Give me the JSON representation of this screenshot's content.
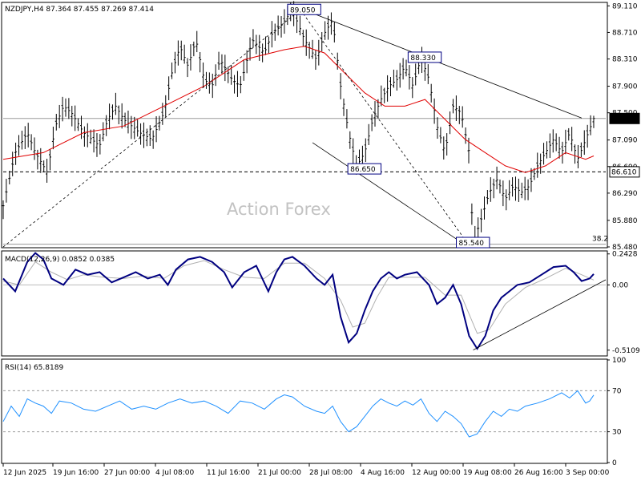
{
  "header": {
    "main": "NZDJPY,H4  87.364 87.455 87.269 87.414",
    "macd": "MACD(12,26,9) 0.0852 0.0385",
    "rsi": "RSI(14) 65.8189"
  },
  "watermark": "Action Forex",
  "x_axis": {
    "labels": [
      "12 Jun 2025",
      "19 Jun 16:00",
      "27 Jun 00:00",
      "4 Jul 08:00",
      "11 Jul 16:00",
      "21 Jul 00:00",
      "28 Jul 08:00",
      "4 Aug 16:00",
      "12 Aug 00:00",
      "19 Aug 08:00",
      "26 Aug 16:00",
      "3 Sep 00:00"
    ]
  },
  "colors": {
    "price_bars": "#000000",
    "moving_average": "#e00000",
    "macd_line": "#000080",
    "macd_signal": "#b0b0b0",
    "rsi_line": "#1e90ff",
    "trendline": "#000000",
    "label_border": "#000080",
    "current_price_box": "#000000"
  },
  "chart_data": [
    {
      "type": "ohlc",
      "symbol": "NZDJPY",
      "timeframe": "H4",
      "last_bar": {
        "open": 87.364,
        "high": 87.455,
        "low": 87.269,
        "close": 87.414
      },
      "y_ticks": [
        "89.110",
        "88.710",
        "88.310",
        "87.900",
        "87.500",
        "87.090",
        "86.690",
        "86.290",
        "85.880",
        "85.480"
      ],
      "ylim": [
        85.48,
        89.15
      ],
      "x_range": [
        0,
        150
      ],
      "price_path": [
        [
          0,
          86.1
        ],
        [
          3,
          86.9
        ],
        [
          6,
          87.2
        ],
        [
          8,
          86.9
        ],
        [
          11,
          86.6
        ],
        [
          13,
          87.3
        ],
        [
          15,
          87.6
        ],
        [
          17,
          87.5
        ],
        [
          20,
          87.2
        ],
        [
          24,
          87.0
        ],
        [
          26,
          87.4
        ],
        [
          28,
          87.6
        ],
        [
          30,
          87.4
        ],
        [
          34,
          87.2
        ],
        [
          37,
          87.1
        ],
        [
          40,
          87.5
        ],
        [
          42,
          88.1
        ],
        [
          44,
          88.5
        ],
        [
          46,
          88.2
        ],
        [
          48,
          88.6
        ],
        [
          50,
          88.0
        ],
        [
          52,
          87.9
        ],
        [
          54,
          88.3
        ],
        [
          57,
          88.0
        ],
        [
          59,
          87.9
        ],
        [
          62,
          88.6
        ],
        [
          65,
          88.4
        ],
        [
          67,
          88.7
        ],
        [
          69,
          88.8
        ],
        [
          72,
          89.05
        ],
        [
          75,
          88.6
        ],
        [
          78,
          88.3
        ],
        [
          80,
          88.7
        ],
        [
          82,
          88.9
        ],
        [
          84,
          87.9
        ],
        [
          86,
          87.2
        ],
        [
          88,
          86.7
        ],
        [
          90,
          86.9
        ],
        [
          92,
          87.4
        ],
        [
          94,
          87.7
        ],
        [
          96,
          87.9
        ],
        [
          98,
          88.0
        ],
        [
          100,
          88.2
        ],
        [
          102,
          87.9
        ],
        [
          104,
          88.33
        ],
        [
          106,
          88.0
        ],
        [
          108,
          87.3
        ],
        [
          110,
          86.9
        ],
        [
          112,
          87.6
        ],
        [
          114,
          87.5
        ],
        [
          116,
          86.9
        ],
        [
          117,
          85.54
        ],
        [
          119,
          85.9
        ],
        [
          121,
          86.3
        ],
        [
          123,
          86.5
        ],
        [
          125,
          86.2
        ],
        [
          127,
          86.4
        ],
        [
          129,
          86.3
        ],
        [
          131,
          86.4
        ],
        [
          133,
          86.7
        ],
        [
          135,
          86.9
        ],
        [
          137,
          87.1
        ],
        [
          139,
          86.9
        ],
        [
          141,
          87.2
        ],
        [
          143,
          86.8
        ],
        [
          145,
          87.1
        ],
        [
          147,
          87.414
        ]
      ],
      "moving_average": [
        [
          0,
          86.8
        ],
        [
          10,
          86.9
        ],
        [
          20,
          87.2
        ],
        [
          30,
          87.3
        ],
        [
          40,
          87.6
        ],
        [
          50,
          87.9
        ],
        [
          60,
          88.3
        ],
        [
          70,
          88.45
        ],
        [
          75,
          88.5
        ],
        [
          80,
          88.4
        ],
        [
          85,
          88.1
        ],
        [
          90,
          87.8
        ],
        [
          95,
          87.6
        ],
        [
          100,
          87.6
        ],
        [
          105,
          87.7
        ],
        [
          110,
          87.4
        ],
        [
          115,
          87.1
        ],
        [
          120,
          86.9
        ],
        [
          125,
          86.7
        ],
        [
          130,
          86.6
        ],
        [
          135,
          86.7
        ],
        [
          140,
          86.9
        ],
        [
          145,
          86.8
        ],
        [
          147,
          86.85
        ]
      ],
      "annotations": [
        {
          "text": "89.050",
          "x": 71,
          "y": 89.05
        },
        {
          "text": "88.330",
          "x": 101,
          "y": 88.33
        },
        {
          "text": "86.650",
          "x": 86,
          "y": 86.65
        },
        {
          "text": "85.540",
          "x": 113,
          "y": 85.54
        }
      ],
      "horizontal_levels": [
        {
          "value": 87.414,
          "label": "87.414",
          "style": "solid"
        },
        {
          "value": 86.61,
          "label": "86.610",
          "style": "dashed"
        },
        {
          "value": 85.52,
          "label": "38.2",
          "style": "solid"
        }
      ],
      "trendlines": [
        {
          "x1": 74,
          "y1": 89.07,
          "x2": 144,
          "y2": 87.42,
          "style": "solid"
        },
        {
          "x1": 77,
          "y1": 87.05,
          "x2": 116,
          "y2": 85.47,
          "style": "solid"
        },
        {
          "x1": 0,
          "y1": 85.48,
          "x2": 74,
          "y2": 89.05,
          "style": "dashed"
        },
        {
          "x1": 74,
          "y1": 89.05,
          "x2": 116,
          "y2": 85.5,
          "style": "dashed"
        }
      ]
    },
    {
      "type": "line",
      "name": "MACD(12,26,9)",
      "values_text": "0.0852 0.0385",
      "y_ticks": [
        "0.2428",
        "0.00",
        "-0.5109"
      ],
      "ylim": [
        -0.55,
        0.26
      ],
      "series": [
        {
          "name": "MACD",
          "points": [
            [
              0,
              0.05
            ],
            [
              3,
              -0.05
            ],
            [
              6,
              0.18
            ],
            [
              8,
              0.25
            ],
            [
              10,
              0.2
            ],
            [
              12,
              0.05
            ],
            [
              15,
              0.0
            ],
            [
              18,
              0.12
            ],
            [
              21,
              0.08
            ],
            [
              24,
              0.1
            ],
            [
              27,
              0.02
            ],
            [
              30,
              0.06
            ],
            [
              33,
              0.1
            ],
            [
              36,
              0.05
            ],
            [
              39,
              0.08
            ],
            [
              41,
              0.0
            ],
            [
              43,
              0.12
            ],
            [
              46,
              0.2
            ],
            [
              49,
              0.22
            ],
            [
              52,
              0.18
            ],
            [
              55,
              0.1
            ],
            [
              57,
              -0.02
            ],
            [
              60,
              0.1
            ],
            [
              63,
              0.15
            ],
            [
              66,
              -0.05
            ],
            [
              68,
              0.1
            ],
            [
              70,
              0.2
            ],
            [
              72,
              0.22
            ],
            [
              75,
              0.15
            ],
            [
              78,
              0.05
            ],
            [
              80,
              0.0
            ],
            [
              82,
              0.08
            ],
            [
              84,
              -0.25
            ],
            [
              86,
              -0.45
            ],
            [
              88,
              -0.38
            ],
            [
              90,
              -0.2
            ],
            [
              92,
              -0.05
            ],
            [
              94,
              0.05
            ],
            [
              96,
              0.1
            ],
            [
              98,
              0.05
            ],
            [
              100,
              0.08
            ],
            [
              103,
              0.1
            ],
            [
              106,
              0.0
            ],
            [
              108,
              -0.15
            ],
            [
              110,
              -0.1
            ],
            [
              112,
              0.0
            ],
            [
              114,
              -0.15
            ],
            [
              116,
              -0.4
            ],
            [
              118,
              -0.5
            ],
            [
              120,
              -0.4
            ],
            [
              122,
              -0.2
            ],
            [
              124,
              -0.1
            ],
            [
              126,
              -0.05
            ],
            [
              128,
              0.0
            ],
            [
              131,
              0.02
            ],
            [
              134,
              0.08
            ],
            [
              137,
              0.14
            ],
            [
              140,
              0.15
            ],
            [
              142,
              0.1
            ],
            [
              144,
              0.03
            ],
            [
              146,
              0.05
            ],
            [
              147,
              0.0852
            ]
          ]
        },
        {
          "name": "Signal",
          "points": [
            [
              0,
              0.03
            ],
            [
              4,
              0.0
            ],
            [
              8,
              0.18
            ],
            [
              12,
              0.1
            ],
            [
              16,
              0.04
            ],
            [
              20,
              0.08
            ],
            [
              25,
              0.06
            ],
            [
              30,
              0.05
            ],
            [
              35,
              0.07
            ],
            [
              40,
              0.05
            ],
            [
              45,
              0.15
            ],
            [
              50,
              0.19
            ],
            [
              55,
              0.12
            ],
            [
              60,
              0.06
            ],
            [
              65,
              0.05
            ],
            [
              70,
              0.17
            ],
            [
              75,
              0.17
            ],
            [
              80,
              0.05
            ],
            [
              84,
              -0.12
            ],
            [
              87,
              -0.33
            ],
            [
              90,
              -0.3
            ],
            [
              93,
              -0.1
            ],
            [
              96,
              0.06
            ],
            [
              100,
              0.06
            ],
            [
              105,
              0.06
            ],
            [
              110,
              -0.08
            ],
            [
              114,
              -0.08
            ],
            [
              118,
              -0.38
            ],
            [
              121,
              -0.35
            ],
            [
              125,
              -0.15
            ],
            [
              130,
              -0.02
            ],
            [
              135,
              0.05
            ],
            [
              140,
              0.13
            ],
            [
              144,
              0.08
            ],
            [
              147,
              0.0385
            ]
          ]
        }
      ],
      "trendline": {
        "x1": 117,
        "y1": -0.51,
        "x2": 150,
        "y2": 0.04
      }
    },
    {
      "type": "line",
      "name": "RSI(14)",
      "values_text": "65.8189",
      "y_ticks": [
        "100",
        "70",
        "30",
        "0"
      ],
      "ylim": [
        0,
        100
      ],
      "levels": [
        70,
        30
      ],
      "series": [
        {
          "name": "RSI",
          "points": [
            [
              0,
              40
            ],
            [
              2,
              55
            ],
            [
              4,
              45
            ],
            [
              6,
              62
            ],
            [
              8,
              58
            ],
            [
              10,
              55
            ],
            [
              12,
              48
            ],
            [
              14,
              60
            ],
            [
              17,
              58
            ],
            [
              20,
              52
            ],
            [
              23,
              50
            ],
            [
              26,
              55
            ],
            [
              29,
              60
            ],
            [
              32,
              52
            ],
            [
              35,
              55
            ],
            [
              38,
              52
            ],
            [
              41,
              58
            ],
            [
              44,
              62
            ],
            [
              47,
              58
            ],
            [
              50,
              60
            ],
            [
              53,
              55
            ],
            [
              56,
              48
            ],
            [
              59,
              60
            ],
            [
              62,
              58
            ],
            [
              65,
              52
            ],
            [
              68,
              62
            ],
            [
              70,
              66
            ],
            [
              72,
              64
            ],
            [
              75,
              55
            ],
            [
              78,
              50
            ],
            [
              80,
              48
            ],
            [
              82,
              55
            ],
            [
              84,
              40
            ],
            [
              86,
              30
            ],
            [
              88,
              35
            ],
            [
              90,
              45
            ],
            [
              92,
              55
            ],
            [
              94,
              62
            ],
            [
              96,
              58
            ],
            [
              98,
              55
            ],
            [
              100,
              60
            ],
            [
              102,
              56
            ],
            [
              104,
              62
            ],
            [
              106,
              48
            ],
            [
              108,
              40
            ],
            [
              110,
              50
            ],
            [
              112,
              45
            ],
            [
              114,
              38
            ],
            [
              116,
              25
            ],
            [
              118,
              28
            ],
            [
              120,
              40
            ],
            [
              122,
              50
            ],
            [
              124,
              45
            ],
            [
              126,
              52
            ],
            [
              128,
              50
            ],
            [
              130,
              55
            ],
            [
              133,
              58
            ],
            [
              136,
              62
            ],
            [
              139,
              68
            ],
            [
              141,
              63
            ],
            [
              143,
              70
            ],
            [
              145,
              58
            ],
            [
              146,
              60
            ],
            [
              147,
              65.8
            ]
          ]
        }
      ]
    }
  ]
}
